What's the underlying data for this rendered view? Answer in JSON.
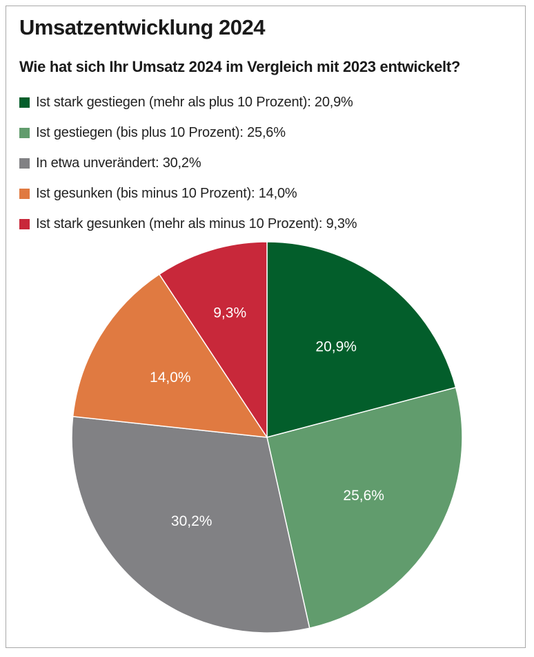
{
  "chart_data": {
    "type": "pie",
    "title": "Umsatzentwicklung 2024",
    "subtitle": "Wie hat sich Ihr Umsatz 2024 im Vergleich mit 2023 entwickelt?",
    "legend_placement": "top-left",
    "slices": [
      {
        "legend_label": "Ist stark gestiegen (mehr als plus 10 Prozent): 20,9%",
        "value": 20.9,
        "data_label": "20,9%",
        "color": "#035e2b"
      },
      {
        "legend_label": "Ist gestiegen (bis plus 10 Prozent): 25,6%",
        "value": 25.6,
        "data_label": "25,6%",
        "color": "#619c6d"
      },
      {
        "legend_label": "In etwa unverändert: 30,2%",
        "value": 30.2,
        "data_label": "30,2%",
        "color": "#818184"
      },
      {
        "legend_label": "Ist gesunken (bis minus 10 Prozent): 14,0%",
        "value": 14.0,
        "data_label": "14,0%",
        "color": "#e07a41"
      },
      {
        "legend_label": "Ist stark gesunken (mehr als minus 10 Prozent): 9,3%",
        "value": 9.3,
        "data_label": "9,3%",
        "color": "#c8283a"
      }
    ]
  }
}
